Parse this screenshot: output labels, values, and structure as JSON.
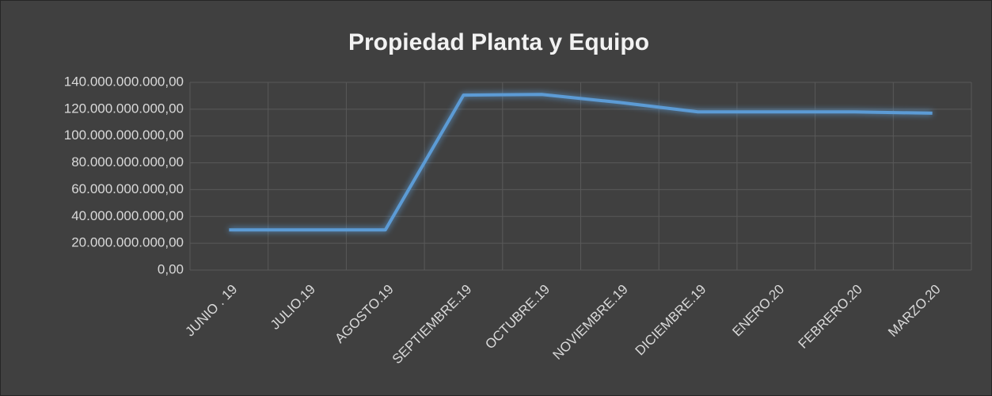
{
  "chart_data": {
    "type": "line",
    "title": "Propiedad Planta y Equipo",
    "categories": [
      "JUNIO . 19",
      "JULIO.19",
      "AGOSTO.19",
      "SEPTIEMBRE.19",
      "OCTUBRE.19",
      "NOVIEMBRE.19",
      "DICIEMBRE.19",
      "ENERO.20",
      "FEBRERO.20",
      "MARZO.20"
    ],
    "series": [
      {
        "name": "Propiedad Planta y Equipo",
        "color": "#5b9bd5",
        "values": [
          30000000000,
          30000000000,
          30000000000,
          130500000000,
          131000000000,
          125000000000,
          118000000000,
          118000000000,
          118000000000,
          117000000000
        ]
      }
    ],
    "ylim": [
      0,
      140000000000
    ],
    "yticks": [
      {
        "value": 0,
        "label": "0,00"
      },
      {
        "value": 20000000000,
        "label": "20.000.000.000,00"
      },
      {
        "value": 40000000000,
        "label": "40.000.000.000,00"
      },
      {
        "value": 60000000000,
        "label": "60.000.000.000,00"
      },
      {
        "value": 80000000000,
        "label": "80.000.000.000,00"
      },
      {
        "value": 100000000000,
        "label": "100.000.000.000,00"
      },
      {
        "value": 120000000000,
        "label": "120.000.000.000,00"
      },
      {
        "value": 140000000000,
        "label": "140.000.000.000,00"
      }
    ],
    "grid": true
  }
}
